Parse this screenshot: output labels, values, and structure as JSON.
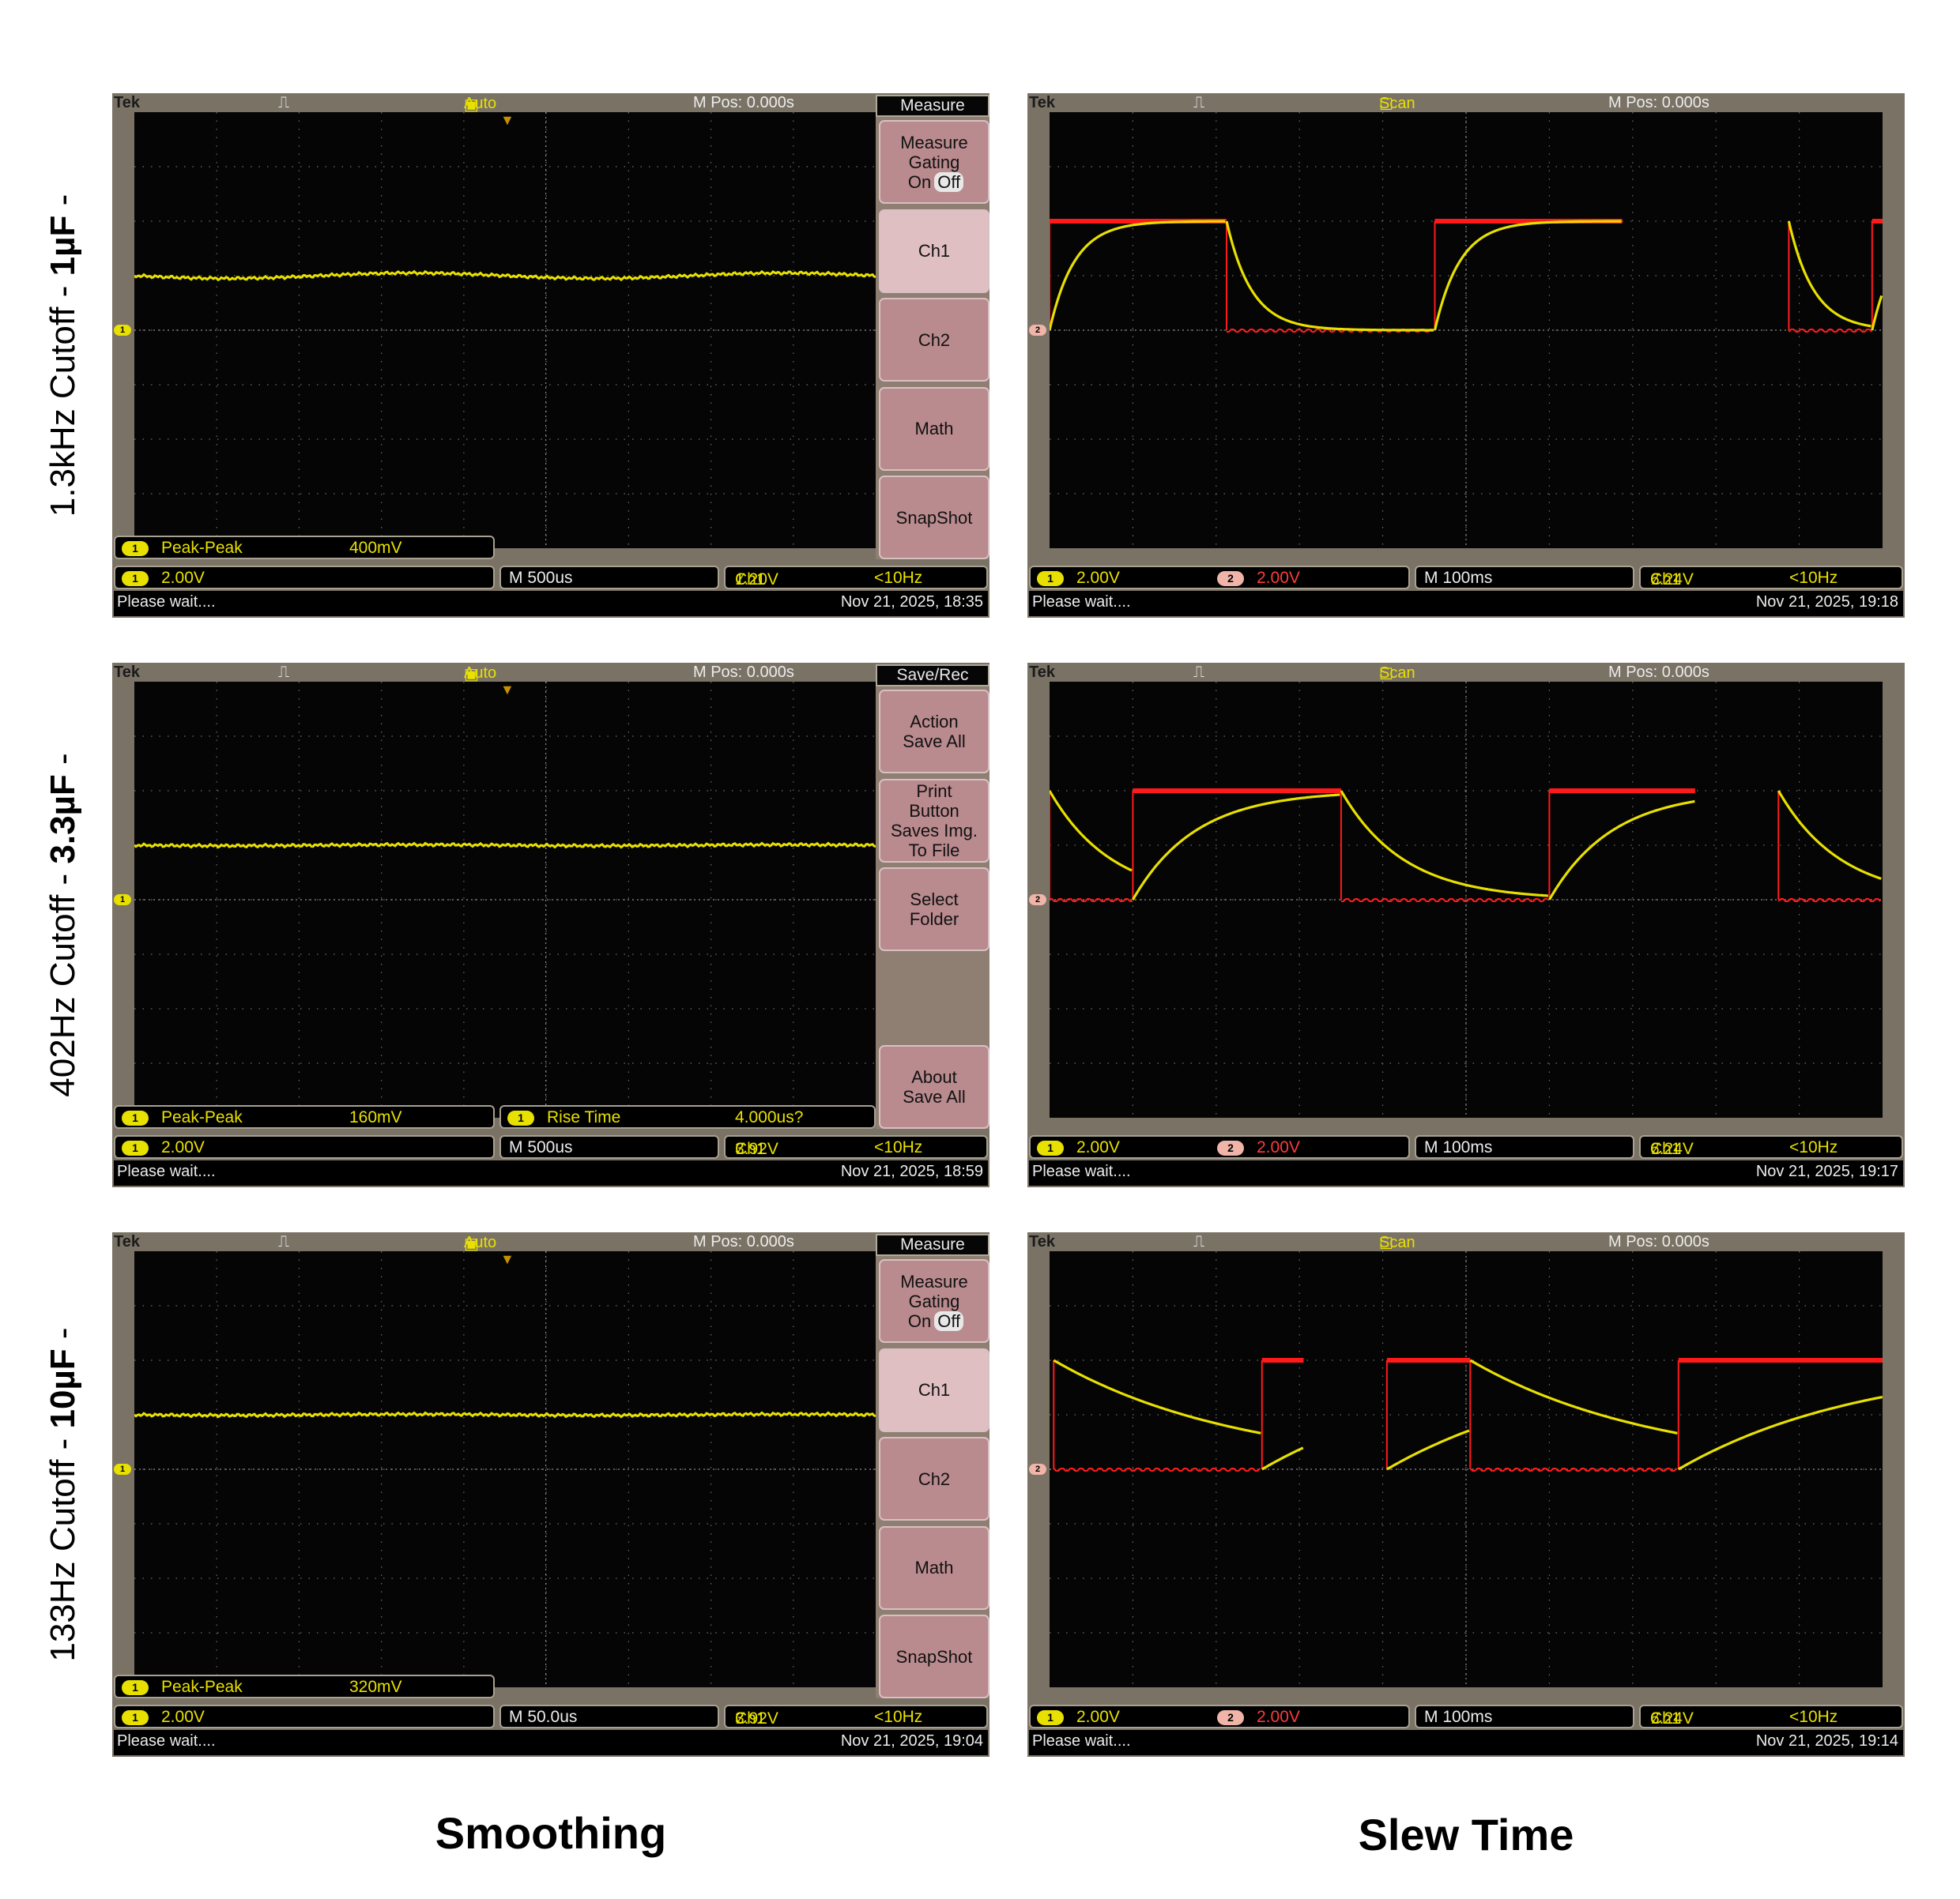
{
  "captions": {
    "left": "Smoothing",
    "right": "Slew Time"
  },
  "row_labels": [
    {
      "prefix": "1.3kHz Cutoff - ",
      "bold": "1µF",
      "suffix": " -"
    },
    {
      "prefix": "402Hz Cutoff - ",
      "bold": "3.3µF",
      "suffix": " -"
    },
    {
      "prefix": "133Hz Cutoff - ",
      "bold": "10µF",
      "suffix": " -"
    }
  ],
  "scopes": [
    {
      "brand": "Tek",
      "trig_icon": "⎍",
      "trig_state": "Auto",
      "mpos": "M Pos: 0.000s",
      "measure": {
        "ch": "1",
        "label": "Peak-Peak",
        "value": "400mV"
      },
      "measure2": null,
      "ch1_scale": "2.00V",
      "ch2_scale": "",
      "timebase": "M 500us",
      "trigger": {
        "ch": "Ch1",
        "slope": "⁄",
        "level": "1.20V",
        "freq": "<10Hz"
      },
      "status": "Please wait....",
      "datetime": "Nov 21, 2025, 18:35",
      "menu": {
        "title": "Measure",
        "buttons": [
          {
            "lines": [
              "Measure",
              "Gating"
            ],
            "toggle": [
              "On",
              "Off"
            ],
            "hi": false
          },
          {
            "lines": [
              "Ch1"
            ],
            "hi": true
          },
          {
            "lines": [
              "Ch2"
            ],
            "hi": false
          },
          {
            "lines": [
              "Math"
            ],
            "hi": false
          },
          {
            "lines": [
              "SnapShot"
            ],
            "hi": false
          }
        ]
      },
      "trace": {
        "kind": "flat",
        "level_div": 1.0,
        "wobble": 0.05
      }
    },
    {
      "brand": "Tek",
      "trig_icon": "⎍",
      "trig_state": "Scan",
      "mpos": "M Pos: 0.000s",
      "measure": null,
      "measure2": null,
      "ch1_scale": "2.00V",
      "ch2_scale": "2.00V",
      "timebase": "M 100ms",
      "trigger": {
        "ch": "Ch1",
        "slope": "⁄",
        "level": "6.24V",
        "freq": "<10Hz"
      },
      "status": "Please wait....",
      "datetime": "Nov 21, 2025, 19:18",
      "menu": null,
      "trace": {
        "kind": "square",
        "high_div": 2.0,
        "tau_div": 0.12,
        "segments": [
          [
            0,
            0.85,
            "hi"
          ],
          [
            0.85,
            1.85,
            "lo"
          ],
          [
            1.85,
            2.75,
            "hi"
          ],
          [
            3.55,
            3.95,
            "lo"
          ],
          [
            3.95,
            4.0,
            "hi"
          ]
        ]
      }
    },
    {
      "brand": "Tek",
      "trig_icon": "⎍",
      "trig_state": "Auto",
      "mpos": "M Pos: 0.000s",
      "measure": {
        "ch": "1",
        "label": "Peak-Peak",
        "value": "160mV"
      },
      "measure2": {
        "ch": "1",
        "label": "Rise Time",
        "value": "4.000us?"
      },
      "ch1_scale": "2.00V",
      "ch2_scale": "",
      "timebase": "M 500us",
      "trigger": {
        "ch": "Ch1",
        "slope": "⁄",
        "level": "3.92V",
        "freq": "<10Hz"
      },
      "status": "Please wait....",
      "datetime": "Nov 21, 2025, 18:59",
      "menu": {
        "title": "Save/Rec",
        "buttons": [
          {
            "lines": [
              "Action",
              "Save All"
            ],
            "hi": false
          },
          {
            "lines": [
              "Print",
              "Button",
              "Saves Img.",
              "To File"
            ],
            "hi": false
          },
          {
            "lines": [
              "Select",
              "Folder"
            ],
            "hi": false
          },
          {
            "lines": [],
            "hi": false,
            "blank": true
          },
          {
            "lines": [
              "About",
              "Save All"
            ],
            "hi": false
          }
        ]
      },
      "trace": {
        "kind": "flat",
        "level_div": 1.0,
        "wobble": 0.01
      }
    },
    {
      "brand": "Tek",
      "trig_icon": "⎍",
      "trig_state": "Scan",
      "mpos": "M Pos: 0.000s",
      "measure": null,
      "measure2": null,
      "ch1_scale": "2.00V",
      "ch2_scale": "2.00V",
      "timebase": "M 100ms",
      "trigger": {
        "ch": "Ch1",
        "slope": "⁄",
        "level": "6.24V",
        "freq": "<10Hz"
      },
      "status": "Please wait....",
      "datetime": "Nov 21, 2025, 19:17",
      "menu": null,
      "trace": {
        "kind": "square",
        "high_div": 2.0,
        "tau_div": 0.3,
        "segments": [
          [
            0,
            0.4,
            "lo"
          ],
          [
            0.4,
            1.4,
            "hi"
          ],
          [
            1.4,
            2.4,
            "lo"
          ],
          [
            2.4,
            3.1,
            "hi"
          ],
          [
            3.5,
            4.0,
            "lo"
          ]
        ]
      }
    },
    {
      "brand": "Tek",
      "trig_icon": "⎍",
      "trig_state": "Auto",
      "mpos": "M Pos: 0.000s",
      "measure": {
        "ch": "1",
        "label": "Peak-Peak",
        "value": "320mV"
      },
      "measure2": null,
      "ch1_scale": "2.00V",
      "ch2_scale": "",
      "timebase": "M 50.0us",
      "trigger": {
        "ch": "Ch1",
        "slope": "⁄",
        "level": "3.92V",
        "freq": "<10Hz"
      },
      "status": "Please wait....",
      "datetime": "Nov 21, 2025, 19:04",
      "menu": {
        "title": "Measure",
        "buttons": [
          {
            "lines": [
              "Measure",
              "Gating"
            ],
            "toggle": [
              "On",
              "Off"
            ],
            "hi": false
          },
          {
            "lines": [
              "Ch1"
            ],
            "hi": true
          },
          {
            "lines": [
              "Ch2"
            ],
            "hi": false
          },
          {
            "lines": [
              "Math"
            ],
            "hi": false
          },
          {
            "lines": [
              "SnapShot"
            ],
            "hi": false
          }
        ]
      },
      "trace": {
        "kind": "flat",
        "level_div": 1.0,
        "wobble": 0.01
      }
    },
    {
      "brand": "Tek",
      "trig_icon": "⎍",
      "trig_state": "Scan",
      "mpos": "M Pos: 0.000s",
      "measure": null,
      "measure2": null,
      "ch1_scale": "2.00V",
      "ch2_scale": "2.00V",
      "timebase": "M 100ms",
      "trigger": {
        "ch": "Ch1",
        "slope": "⁄",
        "level": "6.24V",
        "freq": "<10Hz"
      },
      "status": "Please wait....",
      "datetime": "Nov 21, 2025, 19:14",
      "menu": null,
      "trace": {
        "kind": "square",
        "high_div": 2.0,
        "tau_div": 0.9,
        "segments": [
          [
            0.02,
            1.02,
            "lo"
          ],
          [
            1.02,
            1.22,
            "hi"
          ],
          [
            1.62,
            2.02,
            "hi"
          ],
          [
            2.02,
            3.02,
            "lo"
          ],
          [
            3.02,
            4.0,
            "hi"
          ]
        ]
      }
    }
  ],
  "colors": {
    "ch1": "#e8e000",
    "ch2": "#ff1a1a",
    "bezel": "#7a7265",
    "screen": "#050505",
    "menu_button": "#b98a8e"
  },
  "icons": {
    "trigger": "pulse-icon",
    "channel_badge": "channel-marker-icon"
  }
}
